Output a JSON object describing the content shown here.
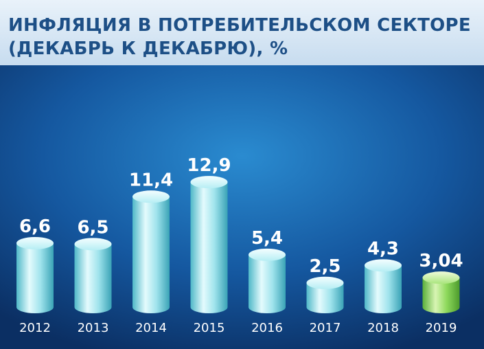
{
  "header": {
    "title_line1": "ИНФЛЯЦИЯ В ПОТРЕБИТЕЛЬСКОМ СЕКТОРЕ",
    "title_line2": "(ДЕКАБРЬ К ДЕКАБРЮ), %"
  },
  "colors": {
    "background_dark": "#0b2f63",
    "background_light": "#2a8bd0",
    "bar_cyan": "#8fe0ea",
    "bar_green": "#7fd14a",
    "title_text": "#1d4f86"
  },
  "chart_data": {
    "type": "bar",
    "title": "ИНФЛЯЦИЯ В ПОТРЕБИТЕЛЬСКОМ СЕКТОРЕ (ДЕКАБРЬ К ДЕКАБРЮ), %",
    "categories": [
      "2012",
      "2013",
      "2014",
      "2015",
      "2016",
      "2017",
      "2018",
      "2019"
    ],
    "values": [
      6.6,
      6.5,
      11.4,
      12.9,
      5.4,
      2.5,
      4.3,
      3.04
    ],
    "value_labels": [
      "6,6",
      "6,5",
      "11,4",
      "12,9",
      "5,4",
      "2,5",
      "4,3",
      "3,04"
    ],
    "highlight_category": "2019",
    "xlabel": "",
    "ylabel": "",
    "grid": false,
    "legend": "none"
  }
}
